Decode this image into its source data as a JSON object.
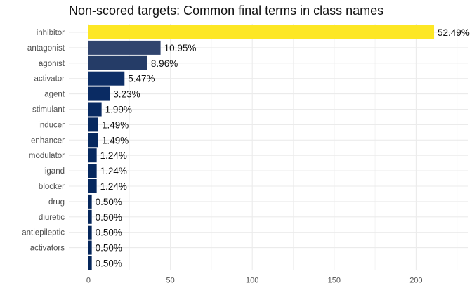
{
  "chart_data": {
    "type": "bar",
    "orientation": "horizontal",
    "title": "Non-scored targets: Common final terms in class names",
    "xlabel": "",
    "ylabel": "",
    "categories": [
      "inhibitor",
      "antagonist",
      "agonist",
      "activator",
      "agent",
      "stimulant",
      "inducer",
      "enhancer",
      "modulator",
      "ligand",
      "blocker",
      "drug",
      "diuretic",
      "antiepileptic",
      "activators",
      ""
    ],
    "values": [
      211,
      44,
      36,
      22,
      13,
      8,
      6,
      6,
      5,
      5,
      5,
      2,
      2,
      2,
      2,
      2
    ],
    "labels": [
      "52.49%",
      "10.95%",
      "8.96%",
      "5.47%",
      "3.23%",
      "1.99%",
      "1.49%",
      "1.49%",
      "1.24%",
      "1.24%",
      "1.24%",
      "0.50%",
      "0.50%",
      "0.50%",
      "0.50%",
      "0.50%"
    ],
    "colors": [
      "#fde725",
      "#30446e",
      "#253c67",
      "#0e2f67",
      "#0a2b63",
      "#082a62",
      "#07295f",
      "#07295f",
      "#06285e",
      "#06285e",
      "#06285e",
      "#05265b",
      "#05265b",
      "#05265b",
      "#05265b",
      "#05265b"
    ],
    "xticks": [
      0,
      50,
      100,
      150,
      200
    ],
    "xlim": [
      -12,
      232
    ],
    "grid": true,
    "legend": "none"
  }
}
